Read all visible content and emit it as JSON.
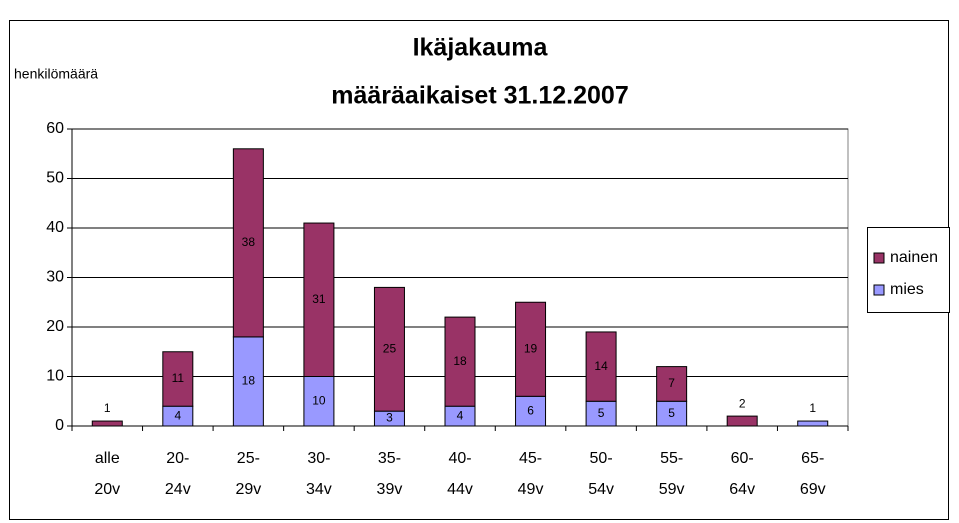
{
  "chart_data": {
    "type": "stacked-bar",
    "title": [
      "Ikäjakauma",
      "määräaikaiset 31.12.2007"
    ],
    "ylabel": "henkilömäärä",
    "categories": [
      [
        "alle",
        "20v"
      ],
      [
        "20-",
        "24v"
      ],
      [
        "25-",
        "29v"
      ],
      [
        "30-",
        "34v"
      ],
      [
        "35-",
        "39v"
      ],
      [
        "40-",
        "44v"
      ],
      [
        "45-",
        "49v"
      ],
      [
        "50-",
        "54v"
      ],
      [
        "55-",
        "59v"
      ],
      [
        "60-",
        "64v"
      ],
      [
        "65-",
        "69v"
      ]
    ],
    "series": [
      {
        "name": "mies",
        "color": "#9999ff",
        "values": [
          null,
          4,
          18,
          10,
          3,
          4,
          6,
          5,
          5,
          null,
          1
        ]
      },
      {
        "name": "nainen",
        "color": "#993366",
        "values": [
          1,
          11,
          38,
          31,
          25,
          18,
          19,
          14,
          7,
          2,
          null
        ]
      }
    ],
    "ylim": [
      0,
      60
    ],
    "yticks": [
      0,
      10,
      20,
      30,
      40,
      50,
      60
    ],
    "grid": true,
    "legend": "right"
  }
}
